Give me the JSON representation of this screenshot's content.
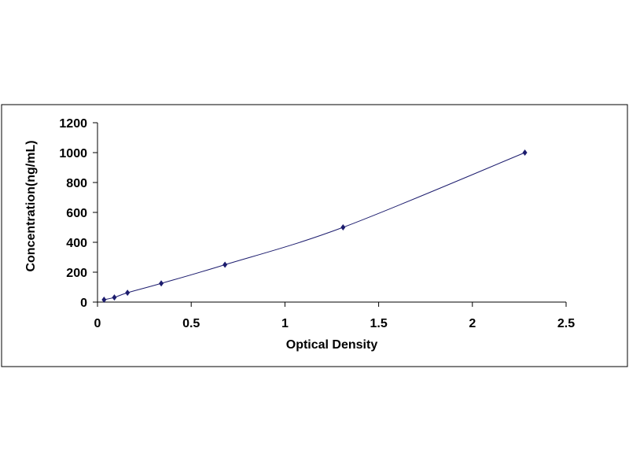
{
  "chart_data": {
    "type": "line",
    "x_label": "Optical Density",
    "y_label": "Concentration(ng/mL)",
    "series": [
      {
        "color": "#1c1c6e",
        "x": [
          0.035,
          0.09,
          0.16,
          0.34,
          0.68,
          1.31,
          2.28
        ],
        "values": [
          15.6,
          31.25,
          62.5,
          125,
          250,
          500,
          1000
        ]
      }
    ],
    "xlim": [
      0,
      2.5
    ],
    "xticks": [
      0,
      0.5,
      1,
      1.5,
      2,
      2.5
    ],
    "ylim": [
      0,
      1200
    ],
    "yticks": [
      0,
      200,
      400,
      600,
      800,
      1000,
      1200
    ],
    "grid": false
  }
}
